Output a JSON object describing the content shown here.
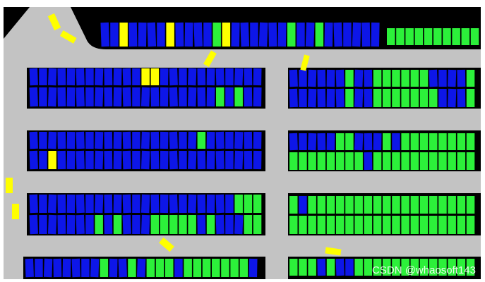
{
  "watermark": "CSDN @whaosoft143"
}
